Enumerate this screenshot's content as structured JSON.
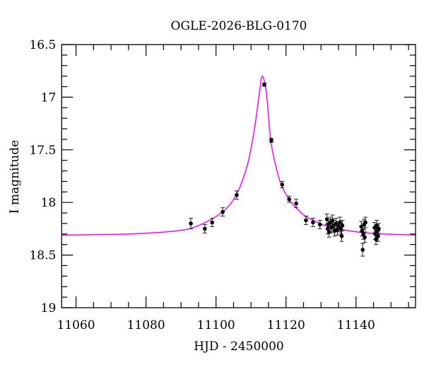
{
  "chart_data": {
    "type": "scatter",
    "title": "OGLE-2026-BLG-0170",
    "xlabel": "HJD - 2450000",
    "ylabel": "I magnitude",
    "xlim": [
      11055.9,
      11157
    ],
    "ylim": [
      19,
      16.5
    ],
    "y_inverted": true,
    "grid": false,
    "x_ticks": [
      11060,
      11080,
      11100,
      11120,
      11140
    ],
    "x_tick_labels": [
      "11060",
      "11080",
      "11100",
      "11120",
      "11140"
    ],
    "y_ticks": [
      16.5,
      17,
      17.5,
      18,
      18.5,
      19
    ],
    "y_tick_labels": [
      "16.5",
      "17",
      "17.5",
      "18",
      "18.5",
      "19"
    ],
    "colors": {
      "data": "#000000",
      "model": "#ff00ff"
    },
    "series": [
      {
        "kind": "points-with-errorbars",
        "points": [
          [
            11092.8,
            18.2,
            0.05
          ],
          [
            11096.8,
            18.25,
            0.04
          ],
          [
            11098.9,
            18.19,
            0.04
          ],
          [
            11101.9,
            18.09,
            0.04
          ],
          [
            11105.9,
            17.93,
            0.04
          ],
          [
            11113.8,
            16.88,
            0.015
          ],
          [
            11115.8,
            17.41,
            0.02
          ],
          [
            11118.9,
            17.83,
            0.03
          ],
          [
            11120.9,
            17.97,
            0.03
          ],
          [
            11122.9,
            18.01,
            0.04
          ],
          [
            11125.7,
            18.17,
            0.04
          ],
          [
            11127.7,
            18.19,
            0.04
          ],
          [
            11129.7,
            18.21,
            0.04
          ],
          [
            11131.7,
            18.16,
            0.05
          ],
          [
            11131.9,
            18.25,
            0.05
          ],
          [
            11132.1,
            18.21,
            0.05
          ],
          [
            11132.3,
            18.28,
            0.05
          ],
          [
            11132.7,
            18.19,
            0.05
          ],
          [
            11133.0,
            18.24,
            0.05
          ],
          [
            11133.3,
            18.17,
            0.05
          ],
          [
            11133.6,
            18.22,
            0.05
          ],
          [
            11133.9,
            18.27,
            0.05
          ],
          [
            11134.3,
            18.2,
            0.05
          ],
          [
            11134.7,
            18.26,
            0.05
          ],
          [
            11135.0,
            18.23,
            0.05
          ],
          [
            11135.4,
            18.19,
            0.05
          ],
          [
            11135.7,
            18.25,
            0.05
          ],
          [
            11135.9,
            18.32,
            0.05
          ],
          [
            11136.1,
            18.22,
            0.05
          ],
          [
            11141.5,
            18.23,
            0.05
          ],
          [
            11141.7,
            18.27,
            0.05
          ],
          [
            11141.9,
            18.45,
            0.06
          ],
          [
            11142.1,
            18.3,
            0.05
          ],
          [
            11142.3,
            18.21,
            0.05
          ],
          [
            11142.5,
            18.33,
            0.05
          ],
          [
            11142.7,
            18.19,
            0.05
          ],
          [
            11145.3,
            18.24,
            0.05
          ],
          [
            11145.5,
            18.3,
            0.05
          ],
          [
            11145.7,
            18.35,
            0.05
          ],
          [
            11145.9,
            18.22,
            0.05
          ],
          [
            11146.1,
            18.27,
            0.05
          ],
          [
            11146.3,
            18.32,
            0.05
          ],
          [
            11146.5,
            18.25,
            0.05
          ]
        ]
      },
      {
        "kind": "model-curve",
        "points": [
          [
            11055.9,
            18.31
          ],
          [
            11075,
            18.3
          ],
          [
            11088.7,
            18.27
          ],
          [
            11095,
            18.22
          ],
          [
            11101.9,
            18.09
          ],
          [
            11105.9,
            17.92
          ],
          [
            11109.0,
            17.64
          ],
          [
            11111.0,
            17.3
          ],
          [
            11112.4,
            16.96
          ],
          [
            11113.2,
            16.8
          ],
          [
            11114.4,
            16.96
          ],
          [
            11115.6,
            17.4
          ],
          [
            11117.0,
            17.64
          ],
          [
            11118.6,
            17.83
          ],
          [
            11121.1,
            17.98
          ],
          [
            11125.1,
            18.12
          ],
          [
            11129.1,
            18.19
          ],
          [
            11133.2,
            18.24
          ],
          [
            11143.1,
            18.29
          ],
          [
            11157,
            18.31
          ]
        ]
      }
    ]
  }
}
